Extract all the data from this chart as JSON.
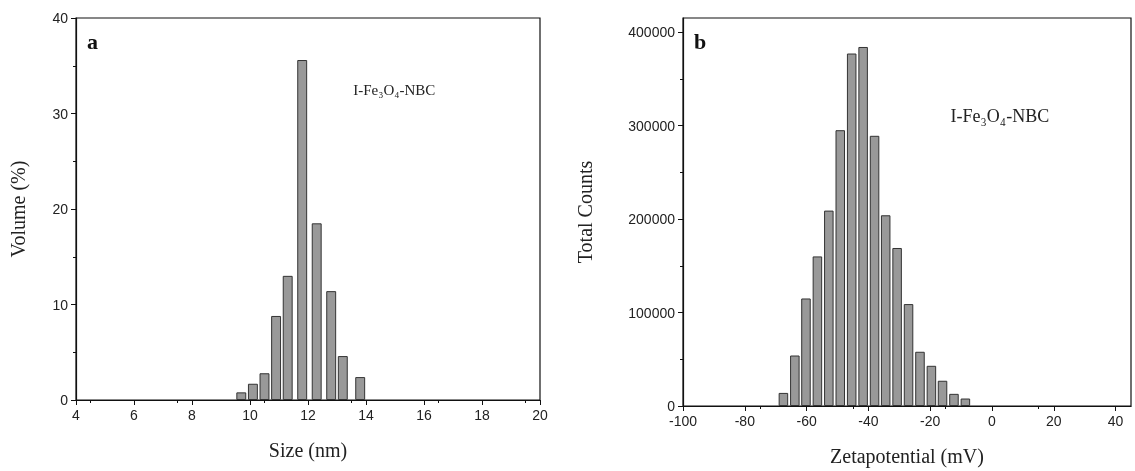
{
  "chart_data": [
    {
      "type": "bar",
      "xlabel": "Size (nm)",
      "ylabel": "Volume (%)",
      "annotations": [
        "a",
        "I-Fe₃O₄-NBC"
      ],
      "x": [
        9.7,
        10.1,
        10.5,
        10.9,
        11.3,
        11.8,
        12.3,
        12.8,
        13.2,
        13.8
      ],
      "values": [
        0.8,
        1.7,
        2.8,
        8.8,
        13.0,
        35.6,
        18.5,
        11.4,
        4.6,
        2.4
      ],
      "color": "#999999",
      "xlim": [
        4,
        20
      ],
      "xticks": [
        4,
        6,
        8,
        10,
        12,
        14,
        16,
        18,
        20
      ],
      "ylim": [
        0,
        40
      ],
      "yticks": [
        0,
        10,
        20,
        30,
        40
      ],
      "grid": false
    },
    {
      "type": "bar",
      "xlabel": "Zetapotential (mV)",
      "ylabel": "Total Counts",
      "annotations": [
        "b",
        "I-Fe₃O₄-NBC"
      ],
      "x": [
        -67.5,
        -63.8,
        -60.2,
        -56.5,
        -52.8,
        -49.1,
        -45.4,
        -41.7,
        -38.0,
        -34.4,
        -30.7,
        -27.0,
        -23.3,
        -19.6,
        -16.0,
        -12.3,
        -8.6
      ],
      "values": [
        14000,
        54000,
        115000,
        160000,
        209000,
        295000,
        377000,
        384000,
        289000,
        204000,
        169000,
        109000,
        58000,
        43000,
        27000,
        13000,
        8000
      ],
      "color": "#999999",
      "xlim": [
        -100,
        45
      ],
      "xticks": [
        -100,
        -80,
        -60,
        -40,
        -20,
        0,
        20,
        40
      ],
      "ylim": [
        0,
        415000
      ],
      "yticks": [
        0,
        100000,
        200000,
        300000,
        400000
      ],
      "grid": false
    }
  ]
}
